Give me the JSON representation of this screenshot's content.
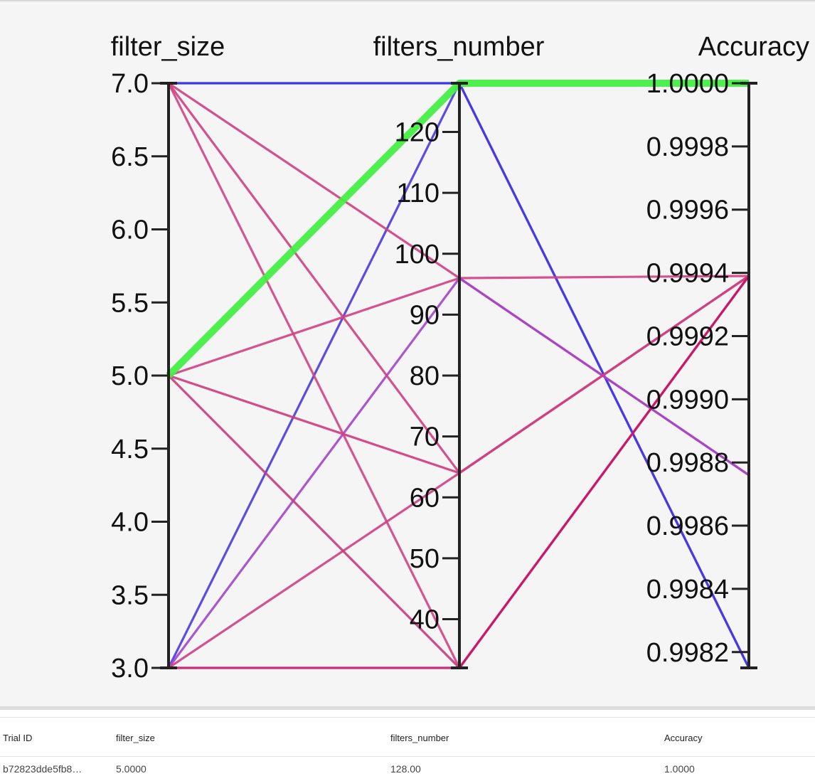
{
  "chart_data": {
    "type": "parallel_coordinates",
    "axes": [
      {
        "name": "filter_size",
        "range": [
          3.0,
          7.0
        ],
        "ticks": [
          "3.0",
          "3.5",
          "4.0",
          "4.5",
          "5.0",
          "5.5",
          "6.0",
          "6.5",
          "7.0"
        ],
        "tick_values": [
          3.0,
          3.5,
          4.0,
          4.5,
          5.0,
          5.5,
          6.0,
          6.5,
          7.0
        ]
      },
      {
        "name": "filters_number",
        "range": [
          32,
          128
        ],
        "ticks": [
          "40",
          "50",
          "60",
          "70",
          "80",
          "90",
          "100",
          "110",
          "120"
        ],
        "tick_values": [
          40,
          50,
          60,
          70,
          80,
          90,
          100,
          110,
          120
        ]
      },
      {
        "name": "Accuracy",
        "range": [
          0.99815,
          1.0
        ],
        "ticks": [
          "0.9982",
          "0.9984",
          "0.9986",
          "0.9988",
          "0.9990",
          "0.9992",
          "0.9994",
          "0.9996",
          "0.9998",
          "1.0000"
        ],
        "tick_values": [
          0.9982,
          0.9984,
          0.9986,
          0.9988,
          0.999,
          0.9992,
          0.9994,
          0.9996,
          0.9998,
          1.0
        ]
      }
    ],
    "trials": [
      {
        "filter_size": 5.0,
        "filters_number": 128,
        "Accuracy": 1.0,
        "color": "#44ee44",
        "highlighted": true
      },
      {
        "filter_size": 7.0,
        "filters_number": 128,
        "Accuracy": 0.99815,
        "color": "#2222ee"
      },
      {
        "filter_size": 3.0,
        "filters_number": 128,
        "Accuracy": 0.99815,
        "color": "#4a3ae0"
      },
      {
        "filter_size": 7.0,
        "filters_number": 96,
        "Accuracy": 0.99876,
        "color": "#d04080"
      },
      {
        "filter_size": 5.0,
        "filters_number": 96,
        "Accuracy": 0.99939,
        "color": "#d44082"
      },
      {
        "filter_size": 3.0,
        "filters_number": 96,
        "Accuracy": 0.99876,
        "color": "#a444cc"
      },
      {
        "filter_size": 7.0,
        "filters_number": 64,
        "Accuracy": 0.99939,
        "color": "#d04080"
      },
      {
        "filter_size": 5.0,
        "filters_number": 64,
        "Accuracy": 0.99939,
        "color": "#d03a7a"
      },
      {
        "filter_size": 3.0,
        "filters_number": 64,
        "Accuracy": 0.99939,
        "color": "#d04080"
      },
      {
        "filter_size": 7.0,
        "filters_number": 32,
        "Accuracy": 0.99939,
        "color": "#d04484"
      },
      {
        "filter_size": 5.0,
        "filters_number": 32,
        "Accuracy": 0.99939,
        "color": "#cc3a7a"
      },
      {
        "filter_size": 3.0,
        "filters_number": 32,
        "Accuracy": 0.99939,
        "color": "#cc1466"
      }
    ]
  },
  "table": {
    "headers": [
      "Trial ID",
      "filter_size",
      "filters_number",
      "Accuracy"
    ],
    "rows": [
      [
        "b72823dde5fb8…",
        "5.0000",
        "128.00",
        "1.0000"
      ]
    ]
  }
}
